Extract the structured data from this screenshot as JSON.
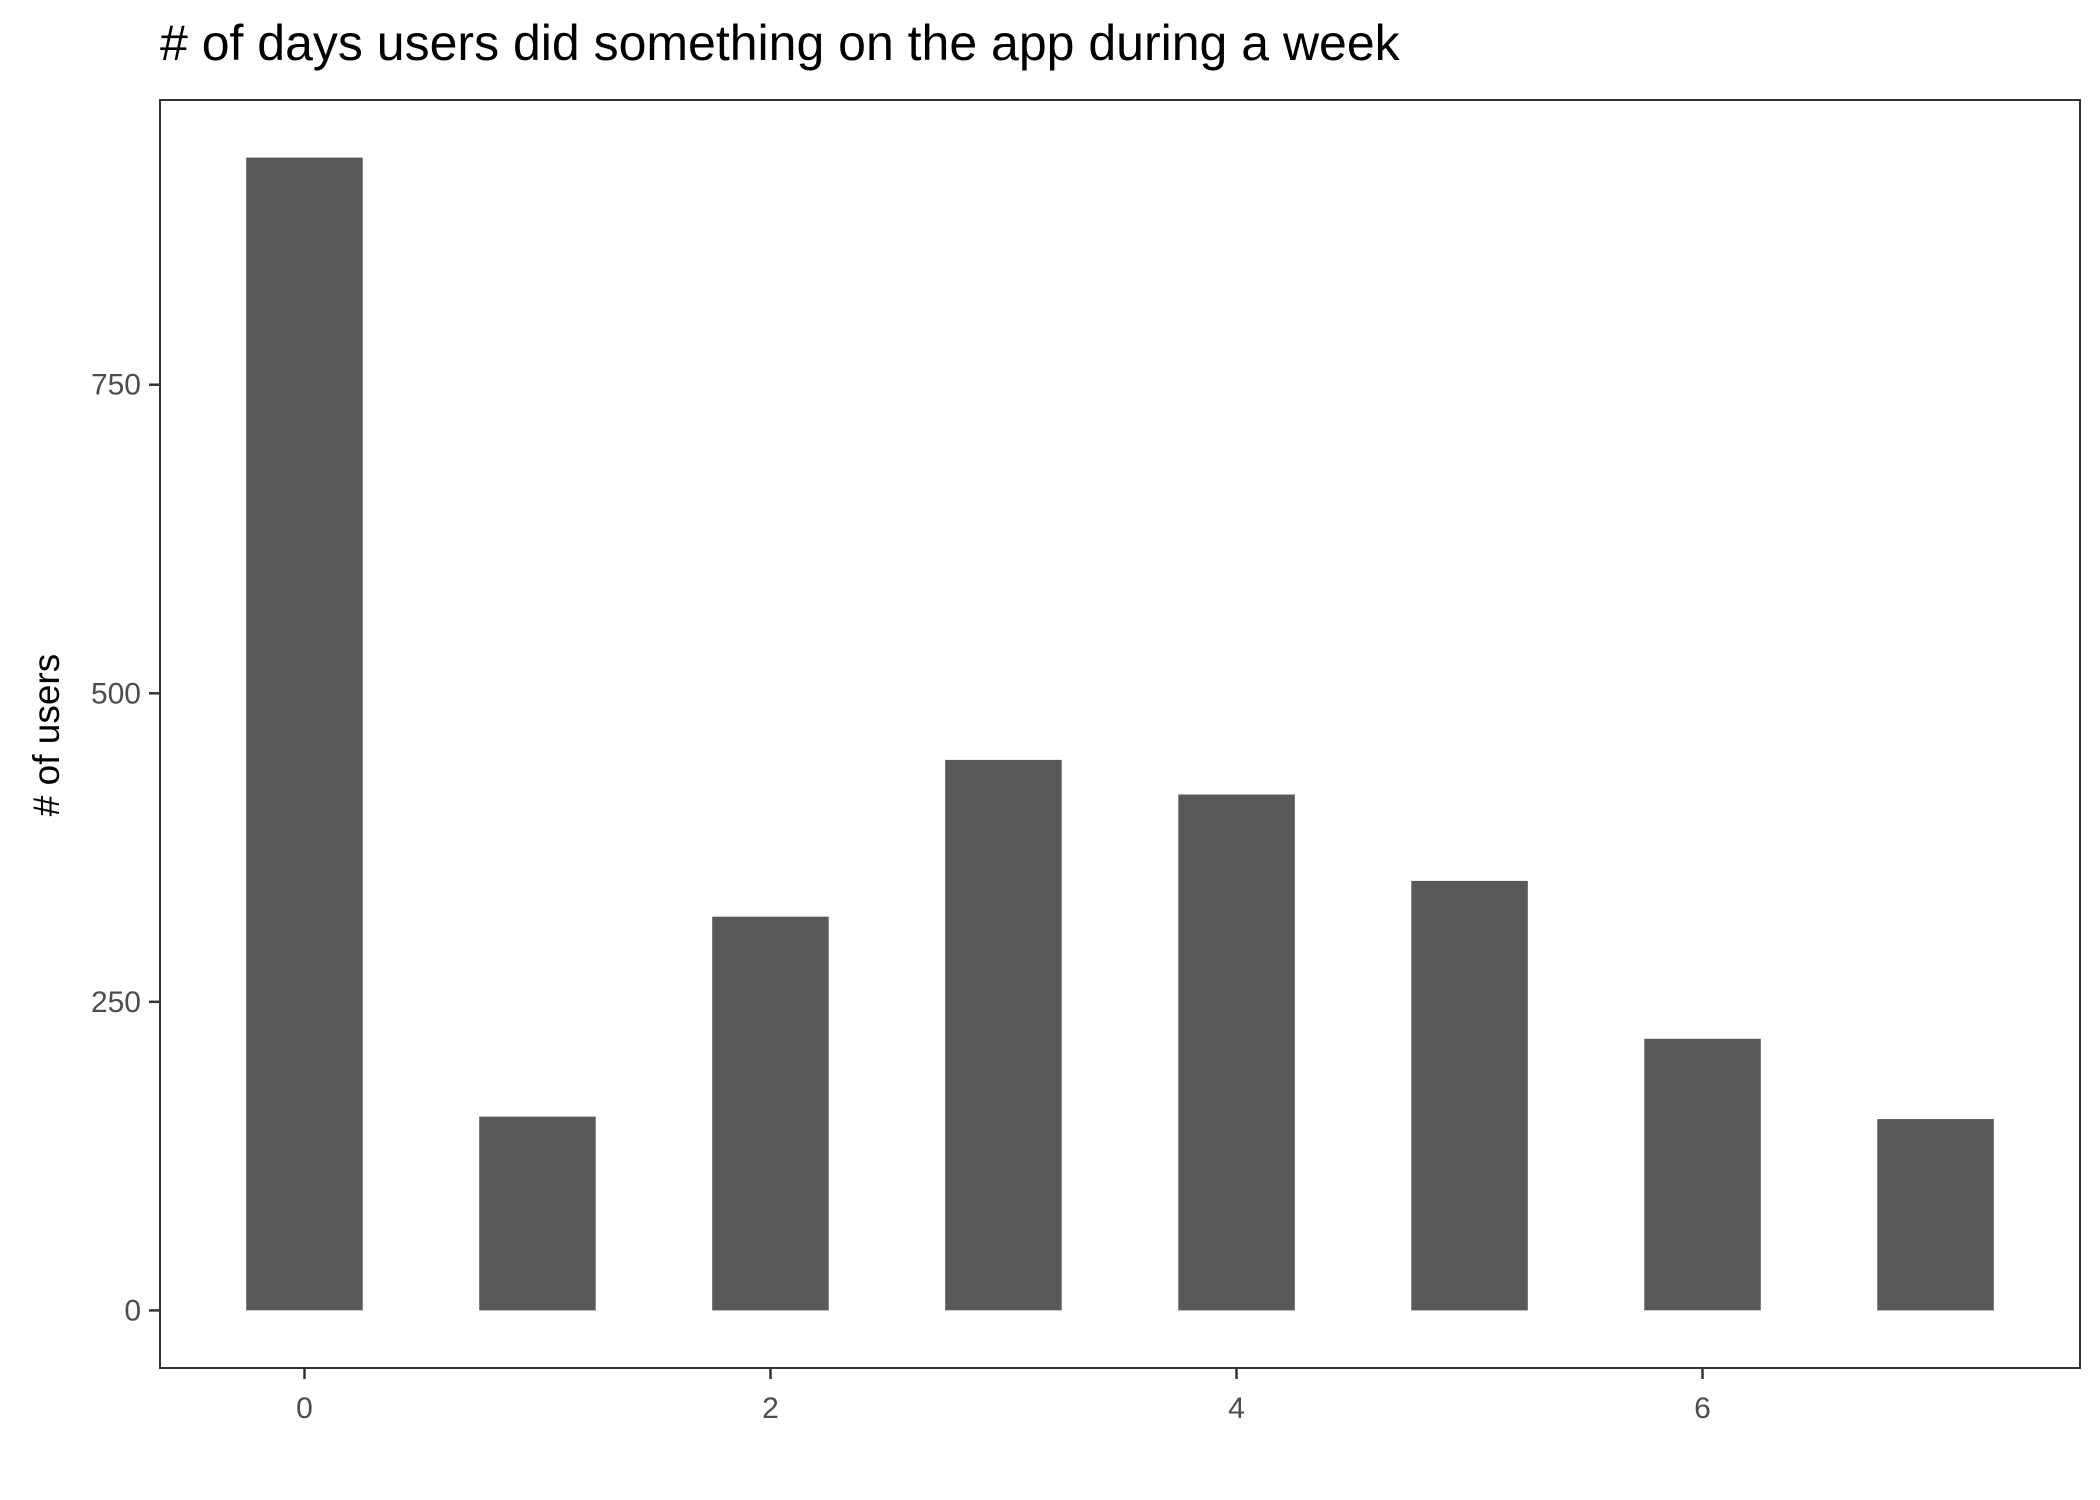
{
  "chart_data": {
    "type": "bar",
    "title": "# of days users did something on the app during a week",
    "xlabel": "",
    "ylabel": "# of users",
    "x": [
      0,
      1,
      2,
      3,
      4,
      5,
      6,
      7
    ],
    "values": [
      934,
      157,
      319,
      446,
      418,
      348,
      220,
      155
    ],
    "xlim": [
      -0.62,
      7.62
    ],
    "ylim": [
      -46.7,
      980.7
    ],
    "x_ticks": [
      0,
      2,
      4,
      6
    ],
    "y_ticks": [
      0,
      250,
      500,
      750
    ],
    "bar_color": "#595959",
    "grid": false,
    "legend": "none"
  }
}
